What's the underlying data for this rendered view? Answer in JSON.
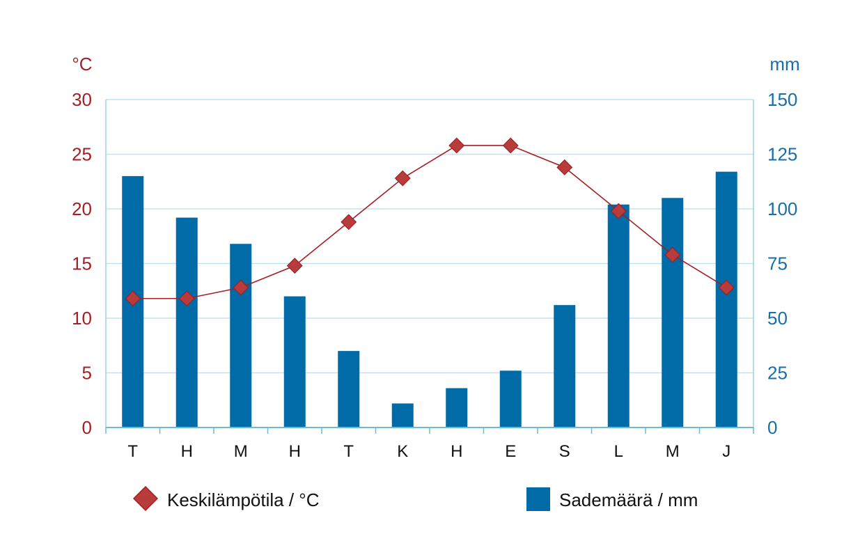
{
  "chart_data": {
    "type": "bar+line",
    "categories": [
      "T",
      "H",
      "M",
      "H",
      "T",
      "K",
      "H",
      "E",
      "S",
      "L",
      "M",
      "J"
    ],
    "series": [
      {
        "name": "Sademäärä / mm",
        "type": "bar",
        "axis": "right",
        "color": "#006ba6",
        "values": [
          115,
          96,
          84,
          60,
          35,
          11,
          18,
          26,
          56,
          102,
          105,
          117
        ]
      },
      {
        "name": "Keskilämpötila / °C",
        "type": "line",
        "axis": "left",
        "color": "#b83c3c",
        "line_color": "#a31f24",
        "values": [
          11.8,
          11.8,
          12.8,
          14.8,
          18.8,
          22.8,
          25.8,
          25.8,
          23.8,
          19.8,
          15.8,
          12.8
        ]
      }
    ],
    "y_left": {
      "unit": "°C",
      "ylim": [
        0,
        30
      ],
      "ticks": [
        "0",
        "5",
        "10",
        "15",
        "20",
        "25",
        "30"
      ],
      "color": "#a31f24"
    },
    "y_right": {
      "unit": "mm",
      "ylim": [
        0,
        150
      ],
      "ticks": [
        "0",
        "25",
        "50",
        "75",
        "100",
        "125",
        "150"
      ],
      "color": "#1a6ea8"
    },
    "grid": true,
    "grid_color": "#bfe3ee",
    "legend": {
      "placement": "bottom",
      "entries": [
        "Keskilämpötila / °C",
        "Sademäärä / mm"
      ]
    }
  }
}
